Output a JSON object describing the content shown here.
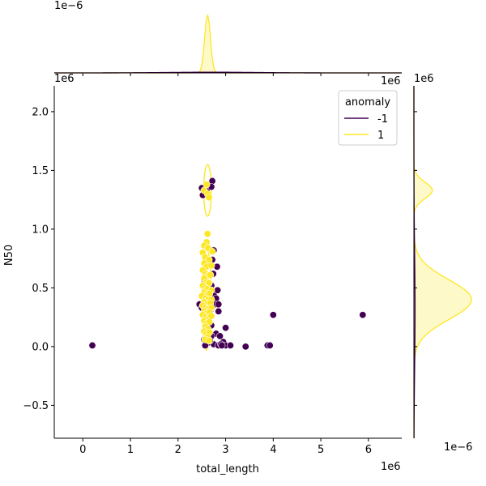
{
  "chart_data": {
    "type": "scatter",
    "subtype": "jointplot",
    "xlabel": "total_length",
    "ylabel": "N50",
    "x_offset_label": "1e6",
    "y_offset_label": "1e6",
    "top_marginal_offset_label": "1e−6",
    "right_marginal_offset_label": "1e−6",
    "top_right_corner_label": "1e6",
    "xlim": [
      -0.6,
      6.7
    ],
    "ylim": [
      -0.78,
      2.22
    ],
    "x_ticks": [
      0,
      1,
      2,
      3,
      4,
      5,
      6
    ],
    "y_ticks": [
      -0.5,
      0.0,
      0.5,
      1.0,
      1.5,
      2.0
    ],
    "x_tick_labels": [
      "0",
      "1",
      "2",
      "3",
      "4",
      "5",
      "6"
    ],
    "y_tick_labels": [
      "−0.5",
      "0.0",
      "0.5",
      "1.0",
      "1.5",
      "2.0"
    ],
    "grid": false,
    "legend": {
      "title": "anomaly",
      "placement": "top-right",
      "entries": [
        {
          "label": "-1",
          "color": "#440154"
        },
        {
          "label": "1",
          "color": "#fde725"
        }
      ]
    },
    "series": [
      {
        "name": "-1",
        "color": "#440154",
        "points": [
          [
            0.2,
            0.01
          ],
          [
            2.45,
            0.36
          ],
          [
            2.5,
            1.35
          ],
          [
            2.52,
            1.29
          ],
          [
            2.6,
            1.33
          ],
          [
            2.72,
            1.41
          ],
          [
            2.7,
            1.36
          ],
          [
            2.62,
            0.72
          ],
          [
            2.75,
            0.82
          ],
          [
            2.72,
            0.74
          ],
          [
            2.82,
            0.68
          ],
          [
            2.55,
            0.57
          ],
          [
            2.7,
            0.52
          ],
          [
            2.6,
            0.47
          ],
          [
            2.75,
            0.44
          ],
          [
            2.8,
            0.41
          ],
          [
            2.5,
            0.33
          ],
          [
            2.65,
            0.28
          ],
          [
            2.6,
            0.22
          ],
          [
            2.7,
            0.18
          ],
          [
            2.8,
            0.11
          ],
          [
            2.88,
            0.09
          ],
          [
            2.95,
            0.04
          ],
          [
            3.0,
            0.16
          ],
          [
            2.55,
            0.06
          ],
          [
            2.62,
            0.03
          ],
          [
            2.75,
            0.02
          ],
          [
            2.85,
            0.01
          ],
          [
            3.0,
            0.01
          ],
          [
            3.1,
            0.01
          ],
          [
            3.42,
            0.0
          ],
          [
            3.88,
            0.01
          ],
          [
            3.93,
            0.01
          ],
          [
            4.0,
            0.27
          ],
          [
            5.88,
            0.27
          ],
          [
            2.78,
            0.36
          ],
          [
            2.85,
            0.36
          ],
          [
            2.68,
            0.31
          ],
          [
            2.9,
            0.02
          ],
          [
            2.7,
            0.09
          ],
          [
            2.57,
            0.01
          ],
          [
            2.67,
            0.05
          ],
          [
            2.85,
            0.3
          ],
          [
            2.92,
            0.01
          ],
          [
            2.83,
            0.48
          ],
          [
            2.74,
            0.62
          ]
        ]
      },
      {
        "name": "1",
        "color": "#fde725",
        "points": [
          [
            2.55,
            1.33
          ],
          [
            2.62,
            1.3
          ],
          [
            2.6,
            1.38
          ],
          [
            2.65,
            1.27
          ],
          [
            2.62,
            0.96
          ],
          [
            2.6,
            0.89
          ],
          [
            2.55,
            0.86
          ],
          [
            2.63,
            0.84
          ],
          [
            2.72,
            0.81
          ],
          [
            2.52,
            0.8
          ],
          [
            2.57,
            0.76
          ],
          [
            2.65,
            0.74
          ],
          [
            2.55,
            0.71
          ],
          [
            2.6,
            0.68
          ],
          [
            2.7,
            0.69
          ],
          [
            2.52,
            0.65
          ],
          [
            2.58,
            0.62
          ],
          [
            2.62,
            0.6
          ],
          [
            2.68,
            0.61
          ],
          [
            2.55,
            0.58
          ],
          [
            2.6,
            0.55
          ],
          [
            2.65,
            0.54
          ],
          [
            2.52,
            0.52
          ],
          [
            2.58,
            0.5
          ],
          [
            2.62,
            0.49
          ],
          [
            2.7,
            0.48
          ],
          [
            2.55,
            0.46
          ],
          [
            2.6,
            0.44
          ],
          [
            2.66,
            0.45
          ],
          [
            2.5,
            0.43
          ],
          [
            2.58,
            0.41
          ],
          [
            2.64,
            0.4
          ],
          [
            2.7,
            0.4
          ],
          [
            2.55,
            0.38
          ],
          [
            2.6,
            0.36
          ],
          [
            2.68,
            0.37
          ],
          [
            2.52,
            0.35
          ],
          [
            2.57,
            0.33
          ],
          [
            2.63,
            0.32
          ],
          [
            2.7,
            0.33
          ],
          [
            2.55,
            0.3
          ],
          [
            2.6,
            0.28
          ],
          [
            2.66,
            0.29
          ],
          [
            2.52,
            0.27
          ],
          [
            2.58,
            0.25
          ],
          [
            2.64,
            0.24
          ],
          [
            2.7,
            0.26
          ],
          [
            2.55,
            0.22
          ],
          [
            2.6,
            0.2
          ],
          [
            2.66,
            0.21
          ],
          [
            2.58,
            0.17
          ],
          [
            2.63,
            0.15
          ],
          [
            2.55,
            0.13
          ],
          [
            2.6,
            0.11
          ],
          [
            2.66,
            0.12
          ],
          [
            2.62,
            0.08
          ],
          [
            2.57,
            0.06
          ],
          [
            2.65,
            0.05
          ]
        ]
      }
    ],
    "kde_contours": [
      {
        "color": "#fde725",
        "center": [
          2.62,
          1.33
        ],
        "radius": [
          0.08,
          0.22
        ]
      },
      {
        "color": "#fde725",
        "center": [
          2.6,
          0.4
        ],
        "radius": [
          0.1,
          0.43
        ]
      }
    ],
    "top_marginal": {
      "series": [
        {
          "name": "1",
          "color": "#fde725",
          "center": 2.62,
          "spread": 0.06
        },
        {
          "name": "-1",
          "color": "#440154",
          "center": 2.7,
          "spread": 0.9,
          "peak_ratio": 0.012
        }
      ]
    },
    "right_marginal": {
      "series": [
        {
          "name": "1",
          "color": "#fde725",
          "components": [
            {
              "mean": 0.4,
              "sd": 0.17,
              "weight": 1.0
            },
            {
              "mean": 1.33,
              "sd": 0.07,
              "weight": 0.32
            }
          ]
        },
        {
          "name": "-1",
          "color": "#440154",
          "components": [
            {
              "mean": 0.3,
              "sd": 0.5,
              "weight": 0.02
            }
          ]
        }
      ]
    }
  }
}
